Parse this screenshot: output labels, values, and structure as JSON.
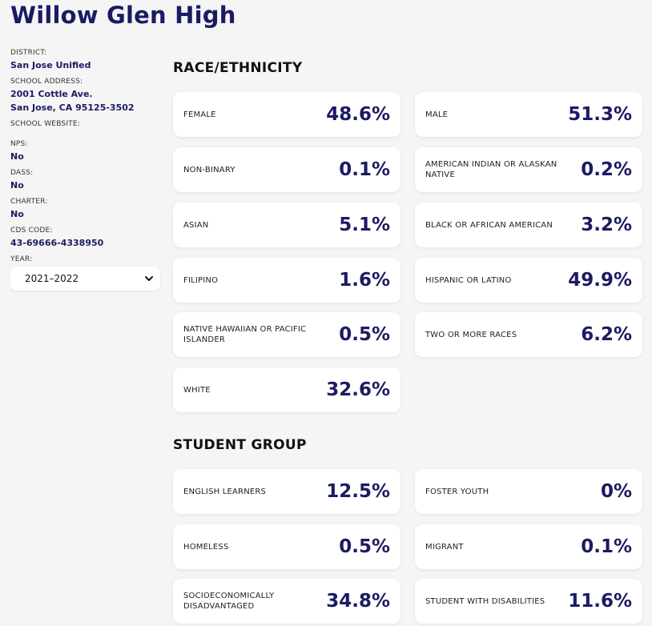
{
  "school_name": "Willow Glen High",
  "sidebar": {
    "district_label": "DISTRICT:",
    "district": "San Jose Unified",
    "address_label": "SCHOOL ADDRESS:",
    "address_line1": "2001 Cottle Ave.",
    "address_line2": "San Jose, CA 95125-3502",
    "website_label": "SCHOOL WEBSITE:",
    "nps_label": "NPS:",
    "nps": "No",
    "dass_label": "DASS:",
    "dass": "No",
    "charter_label": "CHARTER:",
    "charter": "No",
    "cds_label": "CDS CODE:",
    "cds": "43-69666-4338950",
    "year_label": "YEAR:",
    "year_value": "2021–2022"
  },
  "race": {
    "heading": "RACE/ETHNICITY",
    "items": [
      {
        "label": "FEMALE",
        "value": "48.6%"
      },
      {
        "label": "MALE",
        "value": "51.3%"
      },
      {
        "label": "NON-BINARY",
        "value": "0.1%"
      },
      {
        "label": "AMERICAN INDIAN OR ALASKAN NATIVE",
        "value": "0.2%"
      },
      {
        "label": "ASIAN",
        "value": "5.1%"
      },
      {
        "label": "BLACK OR AFRICAN AMERICAN",
        "value": "3.2%"
      },
      {
        "label": "FILIPINO",
        "value": "1.6%"
      },
      {
        "label": "HISPANIC OR LATINO",
        "value": "49.9%"
      },
      {
        "label": "NATIVE HAWAIIAN OR PACIFIC ISLANDER",
        "value": "0.5%"
      },
      {
        "label": "TWO OR MORE RACES",
        "value": "6.2%"
      },
      {
        "label": "WHITE",
        "value": "32.6%"
      }
    ]
  },
  "student_group": {
    "heading": "STUDENT GROUP",
    "items": [
      {
        "label": "ENGLISH LEARNERS",
        "value": "12.5%"
      },
      {
        "label": "FOSTER YOUTH",
        "value": "0%"
      },
      {
        "label": "HOMELESS",
        "value": "0.5%"
      },
      {
        "label": "MIGRANT",
        "value": "0.1%"
      },
      {
        "label": "SOCIOECONOMICALLY DISADVANTAGED",
        "value": "34.8%"
      },
      {
        "label": "STUDENT WITH DISABILITIES",
        "value": "11.6%"
      }
    ]
  }
}
